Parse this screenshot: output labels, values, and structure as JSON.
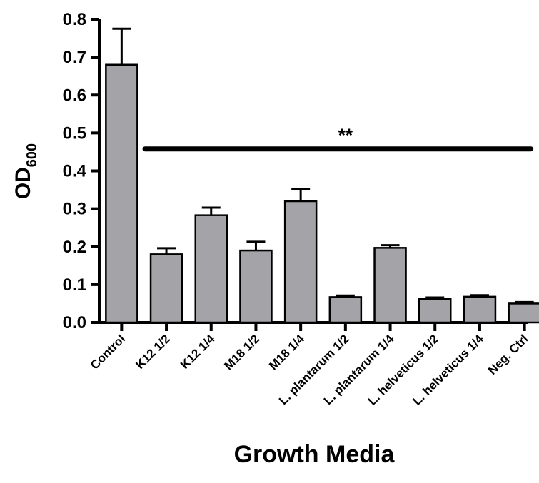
{
  "chart_data": {
    "type": "bar",
    "categories": [
      "Control",
      "K12 1/2",
      "K12 1/4",
      "M18 1/2",
      "M18 1/4",
      "L. plantarum 1/2",
      "L. plantarum 1/4",
      "L. helveticus 1/2",
      "L. helveticus 1/4",
      "Neg. Ctrl"
    ],
    "values": [
      0.68,
      0.18,
      0.283,
      0.19,
      0.32,
      0.067,
      0.197,
      0.062,
      0.068,
      0.05
    ],
    "errors": [
      0.095,
      0.016,
      0.02,
      0.023,
      0.032,
      0.004,
      0.007,
      0.004,
      0.004,
      0.004
    ],
    "xlabel": "Growth Media",
    "ylabel_main": "OD",
    "ylabel_sub": "600",
    "ylim": [
      0,
      0.8
    ],
    "yticks": [
      "0.0",
      "0.1",
      "0.2",
      "0.3",
      "0.4",
      "0.5",
      "0.6",
      "0.7",
      "0.8"
    ],
    "bar_color": "#a3a3a8",
    "significance": {
      "label": "**",
      "y": 0.458,
      "from": "K12 1/2",
      "to": "Neg. Ctrl"
    }
  }
}
